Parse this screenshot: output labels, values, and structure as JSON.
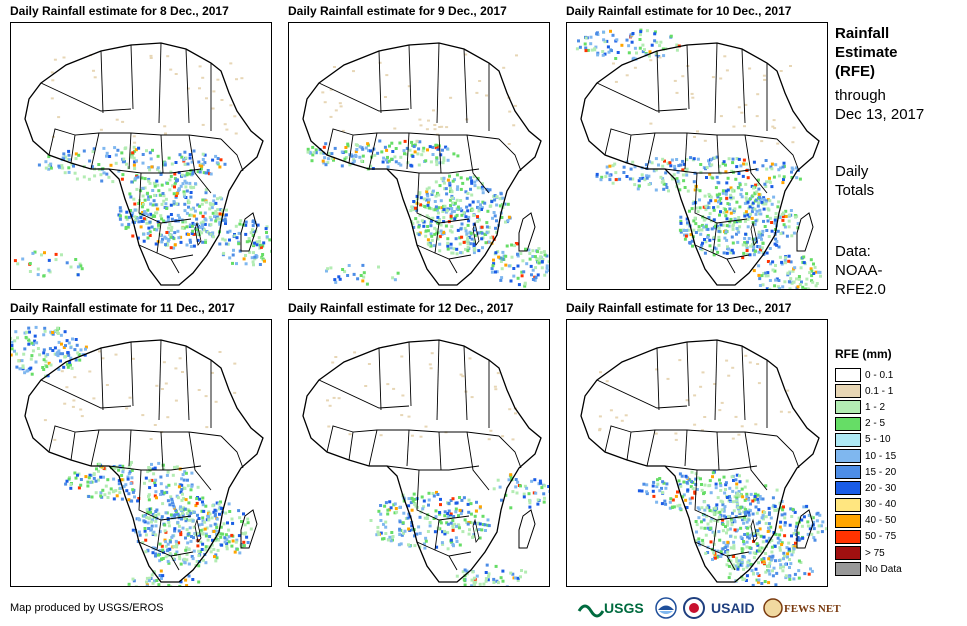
{
  "panels": [
    {
      "title": "Daily Rainfall estimate for 8 Dec., 2017"
    },
    {
      "title": "Daily Rainfall estimate for 9 Dec., 2017"
    },
    {
      "title": "Daily Rainfall estimate for 10 Dec., 2017"
    },
    {
      "title": "Daily Rainfall estimate for 11 Dec., 2017"
    },
    {
      "title": "Daily Rainfall estimate for 12 Dec., 2017"
    },
    {
      "title": "Daily Rainfall estimate for 13 Dec., 2017"
    }
  ],
  "sidebar": {
    "title_lines": [
      "Rainfall",
      "Estimate",
      "(RFE)"
    ],
    "through_label": "through",
    "through_date": "Dec 13, 2017",
    "totals_lines": [
      "Daily",
      "Totals"
    ],
    "data_lines": [
      "Data:",
      "NOAA-",
      "RFE2.0"
    ]
  },
  "legend": {
    "title": "RFE (mm)",
    "items": [
      {
        "label": "0 - 0.1",
        "color": "#ffffff"
      },
      {
        "label": "0.1 - 1",
        "color": "#e7d6b5"
      },
      {
        "label": "1 - 2",
        "color": "#b3ecb3"
      },
      {
        "label": "2 - 5",
        "color": "#66dd66"
      },
      {
        "label": "5 - 10",
        "color": "#ade8f4"
      },
      {
        "label": "10 - 15",
        "color": "#7fb7ef"
      },
      {
        "label": "15 - 20",
        "color": "#4d8de6"
      },
      {
        "label": "20 - 30",
        "color": "#1a5ce6"
      },
      {
        "label": "30 - 40",
        "color": "#ffe680"
      },
      {
        "label": "40 - 50",
        "color": "#ffa500"
      },
      {
        "label": "50 - 75",
        "color": "#ff3300"
      },
      {
        "label": "> 75",
        "color": "#a01010"
      },
      {
        "label": "No Data",
        "color": "#999999"
      }
    ]
  },
  "credit": "Map produced by USGS/EROS",
  "logos": [
    {
      "icon": "usgs-logo",
      "text": "USGS",
      "color": "#006b3f"
    },
    {
      "icon": "noaa-logo",
      "text": "",
      "color": "#1f4f9b"
    },
    {
      "icon": "usaid-seal",
      "text": "",
      "color": "#1f3f7f"
    },
    {
      "icon": "usaid-logo",
      "text": "USAID",
      "color": "#1f3f7f"
    },
    {
      "icon": "fewsnet-logo",
      "text": "FEWS NET",
      "color": "#7a3b10"
    }
  ]
}
